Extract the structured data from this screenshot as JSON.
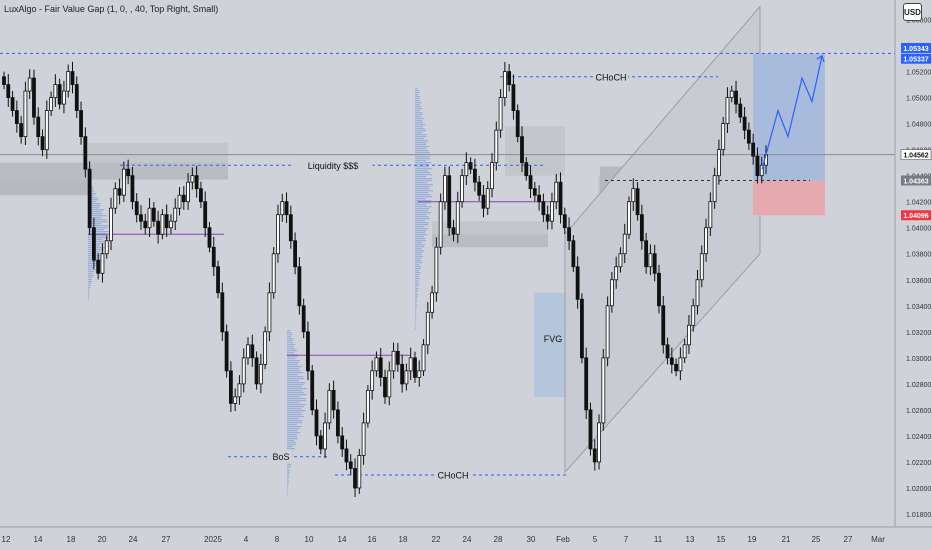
{
  "indicator_label": "LuxAlgo - Fair Value Gap (1, 0, , 40, Top Right, Small)",
  "currency_button": "USD",
  "chart_data": {
    "type": "candlestick",
    "symbol_currency": "USD",
    "x_ticks": [
      "12",
      "14",
      "18",
      "20",
      "24",
      "27",
      "2025",
      "4",
      "8",
      "10",
      "14",
      "16",
      "18",
      "22",
      "24",
      "28",
      "30",
      "Feb",
      "5",
      "7",
      "11",
      "13",
      "15",
      "19",
      "21",
      "25",
      "27",
      "Mar"
    ],
    "y_ticks": [
      "1.05600",
      "1.05400",
      "1.05200",
      "1.05000",
      "1.04800",
      "1.04600",
      "1.04400",
      "1.04200",
      "1.04000",
      "1.03800",
      "1.03600",
      "1.03400",
      "1.03200",
      "1.03000",
      "1.02800",
      "1.02600",
      "1.02400",
      "1.02200",
      "1.02000",
      "1.01800"
    ],
    "y_range": [
      1.017,
      1.0575
    ],
    "price_badges": [
      {
        "value": "1.05343",
        "color": "#2962ff"
      },
      {
        "value": "1.05337",
        "color": "#2962ff"
      },
      {
        "value": "1.04562",
        "color": "#ffffff"
      },
      {
        "value": "1.04363",
        "color": "#787b86"
      },
      {
        "value": "1.04096",
        "color": "#f23645"
      }
    ],
    "annotations": [
      {
        "text": "Liquidity $$$",
        "level": 1.0448
      },
      {
        "text": "CHoCH",
        "level": 1.0516
      },
      {
        "text": "BoS",
        "level": 1.0224
      },
      {
        "text": "CHoCH",
        "level": 1.021
      },
      {
        "text": "FVG",
        "level": 1.0315
      }
    ],
    "levels": [
      {
        "name": "liquidity-high",
        "value": 1.05343
      },
      {
        "name": "current-price",
        "value": 1.04562
      },
      {
        "name": "support",
        "value": 1.04363
      },
      {
        "name": "stop",
        "value": 1.04096
      }
    ],
    "position": {
      "entry": 1.04363,
      "target": 1.05337,
      "stop": 1.04096
    },
    "closes": [
      1.051,
      1.05,
      1.049,
      1.048,
      1.047,
      1.0505,
      1.0515,
      1.0485,
      1.047,
      1.046,
      1.049,
      1.05,
      1.051,
      1.0495,
      1.0505,
      1.052,
      1.051,
      1.049,
      1.047,
      1.0445,
      1.04,
      1.0375,
      1.0365,
      1.038,
      1.039,
      1.0415,
      1.043,
      1.0425,
      1.0445,
      1.044,
      1.042,
      1.041,
      1.0405,
      1.04,
      1.0415,
      1.0405,
      1.0395,
      1.041,
      1.04,
      1.0405,
      1.0415,
      1.0425,
      1.042,
      1.0435,
      1.044,
      1.043,
      1.042,
      1.04,
      1.0385,
      1.037,
      1.035,
      1.032,
      1.029,
      1.0265,
      1.027,
      1.028,
      1.03,
      1.031,
      1.03,
      1.028,
      1.0295,
      1.032,
      1.035,
      1.038,
      1.041,
      1.042,
      1.041,
      1.039,
      1.037,
      1.034,
      1.032,
      1.029,
      1.026,
      1.024,
      1.023,
      1.025,
      1.0275,
      1.026,
      1.024,
      1.023,
      1.022,
      1.0215,
      1.02,
      1.0225,
      1.025,
      1.0275,
      1.029,
      1.03,
      1.0285,
      1.027,
      1.029,
      1.0305,
      1.0295,
      1.028,
      1.029,
      1.03,
      1.0285,
      1.029,
      1.031,
      1.0335,
      1.035,
      1.0385,
      1.042,
      1.044,
      1.04,
      1.0395,
      1.042,
      1.044,
      1.045,
      1.0445,
      1.0435,
      1.0425,
      1.0415,
      1.043,
      1.045,
      1.0475,
      1.05,
      1.052,
      1.051,
      1.049,
      1.047,
      1.045,
      1.044,
      1.043,
      1.0425,
      1.042,
      1.041,
      1.0405,
      1.042,
      1.0435,
      1.041,
      1.04,
      1.039,
      1.037,
      1.0345,
      1.03,
      1.026,
      1.023,
      1.022,
      1.025,
      1.03,
      1.034,
      1.036,
      1.037,
      1.038,
      1.0395,
      1.042,
      1.043,
      1.041,
      1.039,
      1.037,
      1.038,
      1.0365,
      1.034,
      1.031,
      1.03,
      1.0295,
      1.029,
      1.03,
      1.031,
      1.0325,
      1.034,
      1.036,
      1.038,
      1.04,
      1.042,
      1.044,
      1.046,
      1.048,
      1.05,
      1.0505,
      1.0495,
      1.0485,
      1.0475,
      1.0465,
      1.0455,
      1.044,
      1.0448,
      1.0456
    ]
  }
}
